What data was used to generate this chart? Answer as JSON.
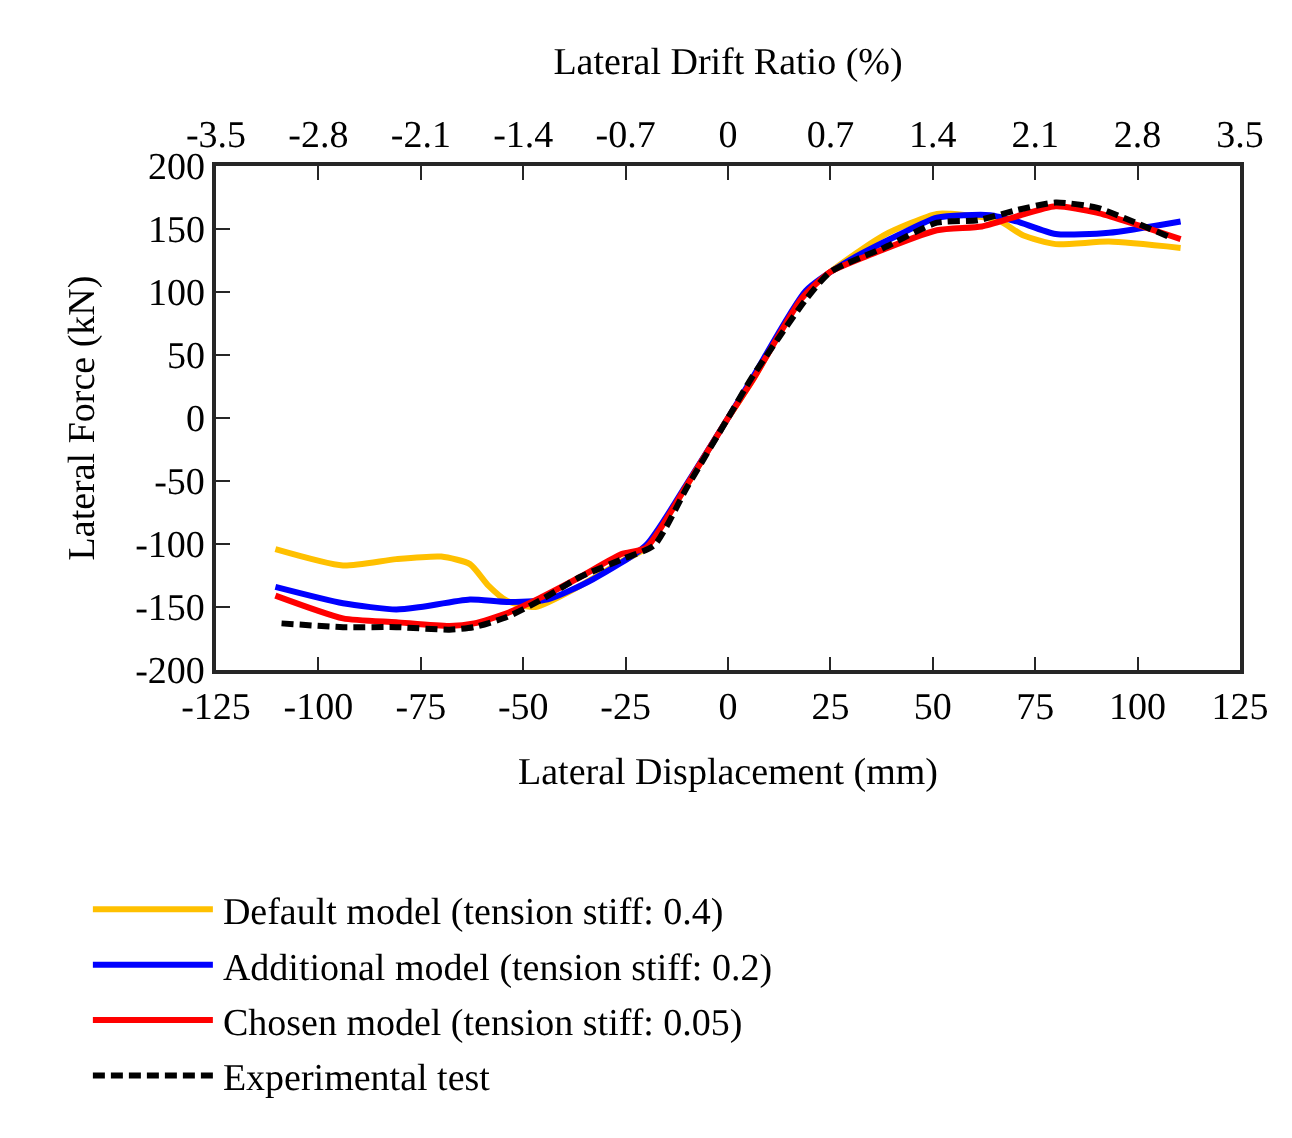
{
  "chart_data": {
    "type": "line",
    "xlabel": "Lateral Displacement (mm)",
    "ylabel": "Lateral Force (kN)",
    "x2label": "Lateral Drift Ratio (%)",
    "xlim": [
      -125,
      125
    ],
    "xticks": [
      -125,
      -100,
      -75,
      -50,
      -25,
      0,
      25,
      50,
      75,
      100,
      125
    ],
    "ylim": [
      -200,
      200
    ],
    "yticks": [
      -200,
      -150,
      -100,
      -50,
      0,
      50,
      100,
      150,
      200
    ],
    "x2lim": [
      -3.5,
      3.5
    ],
    "x2ticks": [
      -3.5,
      -2.8,
      -2.1,
      -1.4,
      -0.7,
      0,
      0.7,
      1.4,
      2.1,
      2.8,
      3.5
    ],
    "grid": false,
    "legend": "bottom",
    "marker": "none",
    "series": [
      {
        "name": "Default model (tension stiff: 0.4)",
        "color": "#ffc000",
        "line_style": "solid",
        "x": [
          -110.5,
          -94,
          -81,
          -70,
          -63,
          -58.5,
          -54,
          -47,
          -36,
          -26,
          -20,
          -10,
          0,
          6,
          18,
          25,
          38,
          51,
          58,
          66,
          72,
          80,
          93,
          110.5
        ],
        "values": [
          -104,
          -117,
          -112,
          -110,
          -116,
          -133,
          -145,
          -150,
          -133,
          -114,
          -103,
          -53,
          0,
          30,
          96,
          116,
          145,
          162,
          161,
          157,
          145,
          138,
          140,
          135
        ]
      },
      {
        "name": "Additional model (tension stiff: 0.2)",
        "color": "#0000ff",
        "line_style": "solid",
        "x": [
          -110.5,
          -94,
          -81,
          -75,
          -63,
          -54,
          -44,
          -33,
          -20,
          -10,
          0,
          6,
          19,
          28.5,
          41.5,
          51,
          64,
          70.5,
          80,
          93,
          110.5
        ],
        "values": [
          -134,
          -147,
          -152,
          -150,
          -144,
          -146,
          -144,
          -128,
          -101,
          -52,
          0,
          32,
          101,
          123,
          145,
          159,
          161,
          156,
          146,
          147,
          156
        ]
      },
      {
        "name": "Chosen model (tension stiff: 0.05)",
        "color": "#ff0000",
        "line_style": "solid",
        "x": [
          -110.5,
          -94,
          -81,
          -68,
          -62,
          -54,
          -46,
          -36,
          -26,
          -20,
          -10,
          0,
          6,
          18,
          25,
          35,
          51,
          62,
          70.5,
          80,
          90,
          110.5
        ],
        "values": [
          -141,
          -159,
          -162,
          -165,
          -163,
          -155,
          -143,
          -126,
          -108,
          -103,
          -53,
          0,
          30,
          95,
          116,
          130,
          149,
          152,
          160,
          168,
          163,
          142
        ]
      },
      {
        "name": "Experimental test",
        "color": "#000000",
        "line_style": "dashed",
        "x": [
          -109,
          -94,
          -81,
          -68,
          -62,
          -54,
          -46,
          -36,
          -25,
          -18,
          -10,
          0,
          6,
          19,
          25,
          38,
          51,
          61,
          70.5,
          80,
          90,
          99.5,
          107.5
        ],
        "values": [
          -163,
          -166,
          -166,
          -168,
          -166,
          -158,
          -145,
          -126,
          -111,
          -101,
          -55,
          0,
          33,
          94,
          116,
          135,
          155,
          157,
          165,
          171,
          167,
          155,
          144
        ]
      }
    ]
  }
}
